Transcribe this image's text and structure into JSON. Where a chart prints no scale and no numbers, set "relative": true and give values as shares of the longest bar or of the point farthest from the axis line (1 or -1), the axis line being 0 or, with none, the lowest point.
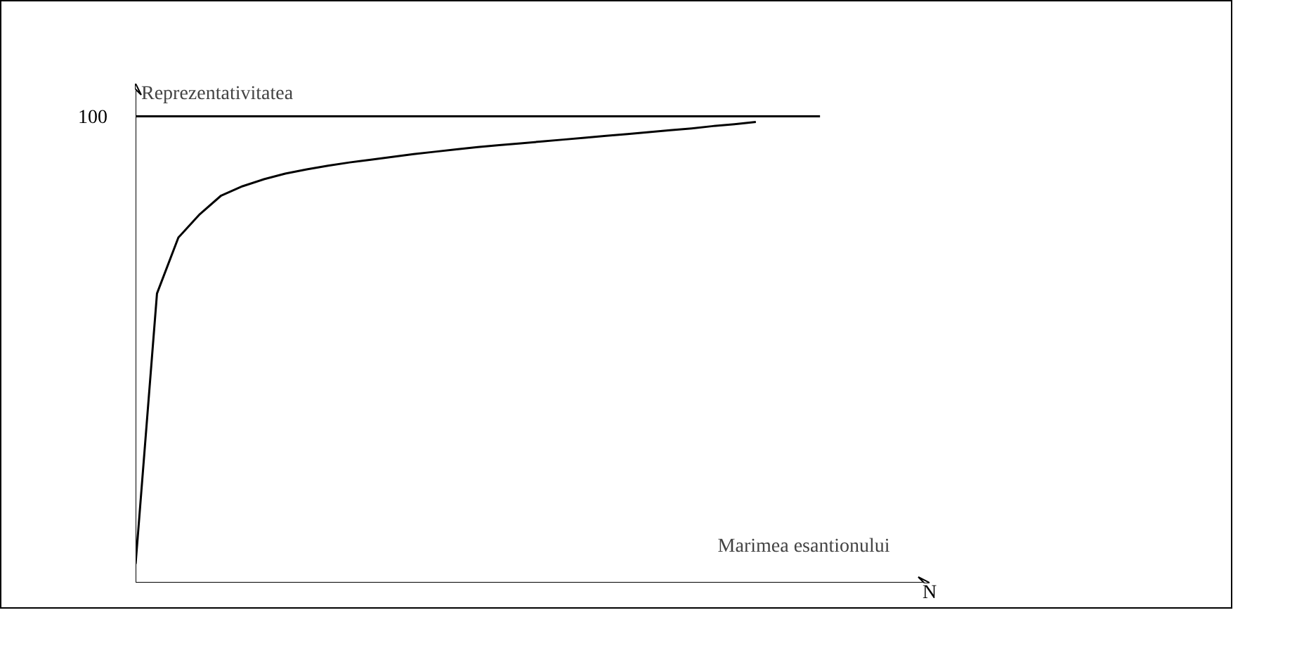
{
  "chart_data": {
    "type": "line",
    "relative": true,
    "xlabel": "Marimea esantionului",
    "ylabel": "Reprezentativitatea",
    "annotations": [
      "100",
      "N"
    ],
    "categories": [
      null,
      null,
      null,
      null,
      null,
      null,
      null,
      null,
      null,
      null,
      null,
      null,
      null,
      null,
      null,
      null,
      null,
      null,
      null,
      null,
      null,
      null,
      null,
      null,
      null,
      null,
      null,
      null,
      null,
      null,
      null,
      null,
      null
    ],
    "series": [
      {
        "color": "#000000",
        "values": [
          0.04,
          0.62,
          0.74,
          0.79,
          0.83,
          0.85,
          0.865,
          0.877,
          0.886,
          0.894,
          0.901,
          0.907,
          0.913,
          0.919,
          0.924,
          0.929,
          0.934,
          0.938,
          0.942,
          0.946,
          0.95,
          0.954,
          0.958,
          0.962,
          0.966,
          0.97,
          0.974,
          0.979,
          0.983,
          0.988,
          null,
          null,
          null
        ]
      },
      {
        "color": "#000000",
        "values": [
          1,
          1,
          1,
          1,
          1,
          1,
          1,
          1,
          1,
          1,
          1,
          1,
          1,
          1,
          1,
          1,
          1,
          1,
          1,
          1,
          1,
          1,
          1,
          1,
          1,
          1,
          1,
          1,
          1,
          1,
          1,
          1,
          1
        ]
      }
    ],
    "grid": false,
    "marker": "none",
    "line_style": "solid"
  }
}
